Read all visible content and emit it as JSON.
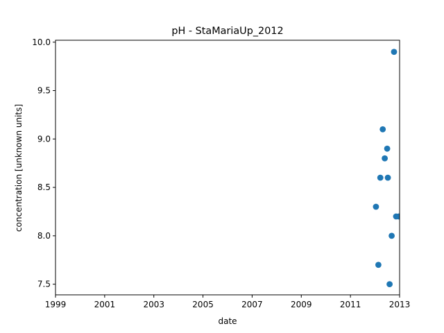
{
  "chart_data": {
    "type": "scatter",
    "title": "pH - StaMariaUp_2012",
    "xlabel": "date",
    "ylabel": "concentration [unknown units]",
    "x_ticks": [
      "1999",
      "2001",
      "2003",
      "2005",
      "2007",
      "2009",
      "2011",
      "2013"
    ],
    "y_ticks": [
      "7.5",
      "8.0",
      "8.5",
      "9.0",
      "9.5",
      "10.0"
    ],
    "xlim": [
      "1999-01-01",
      "2013-01-01"
    ],
    "ylim": [
      7.39,
      10.02
    ],
    "grid": false,
    "marker_color": "#1f77b4",
    "series": [
      {
        "x": [
          "2012-01-15",
          "2012-02-20",
          "2012-03-20",
          "2012-04-25",
          "2012-05-25",
          "2012-06-30",
          "2012-07-10",
          "2012-08-05",
          "2012-09-05",
          "2012-10-10",
          "2012-11-10",
          "2012-12-20"
        ],
        "y": [
          8.3,
          7.7,
          8.6,
          9.1,
          8.8,
          8.9,
          8.6,
          7.5,
          8.0,
          9.9,
          8.2,
          8.2
        ]
      }
    ]
  }
}
